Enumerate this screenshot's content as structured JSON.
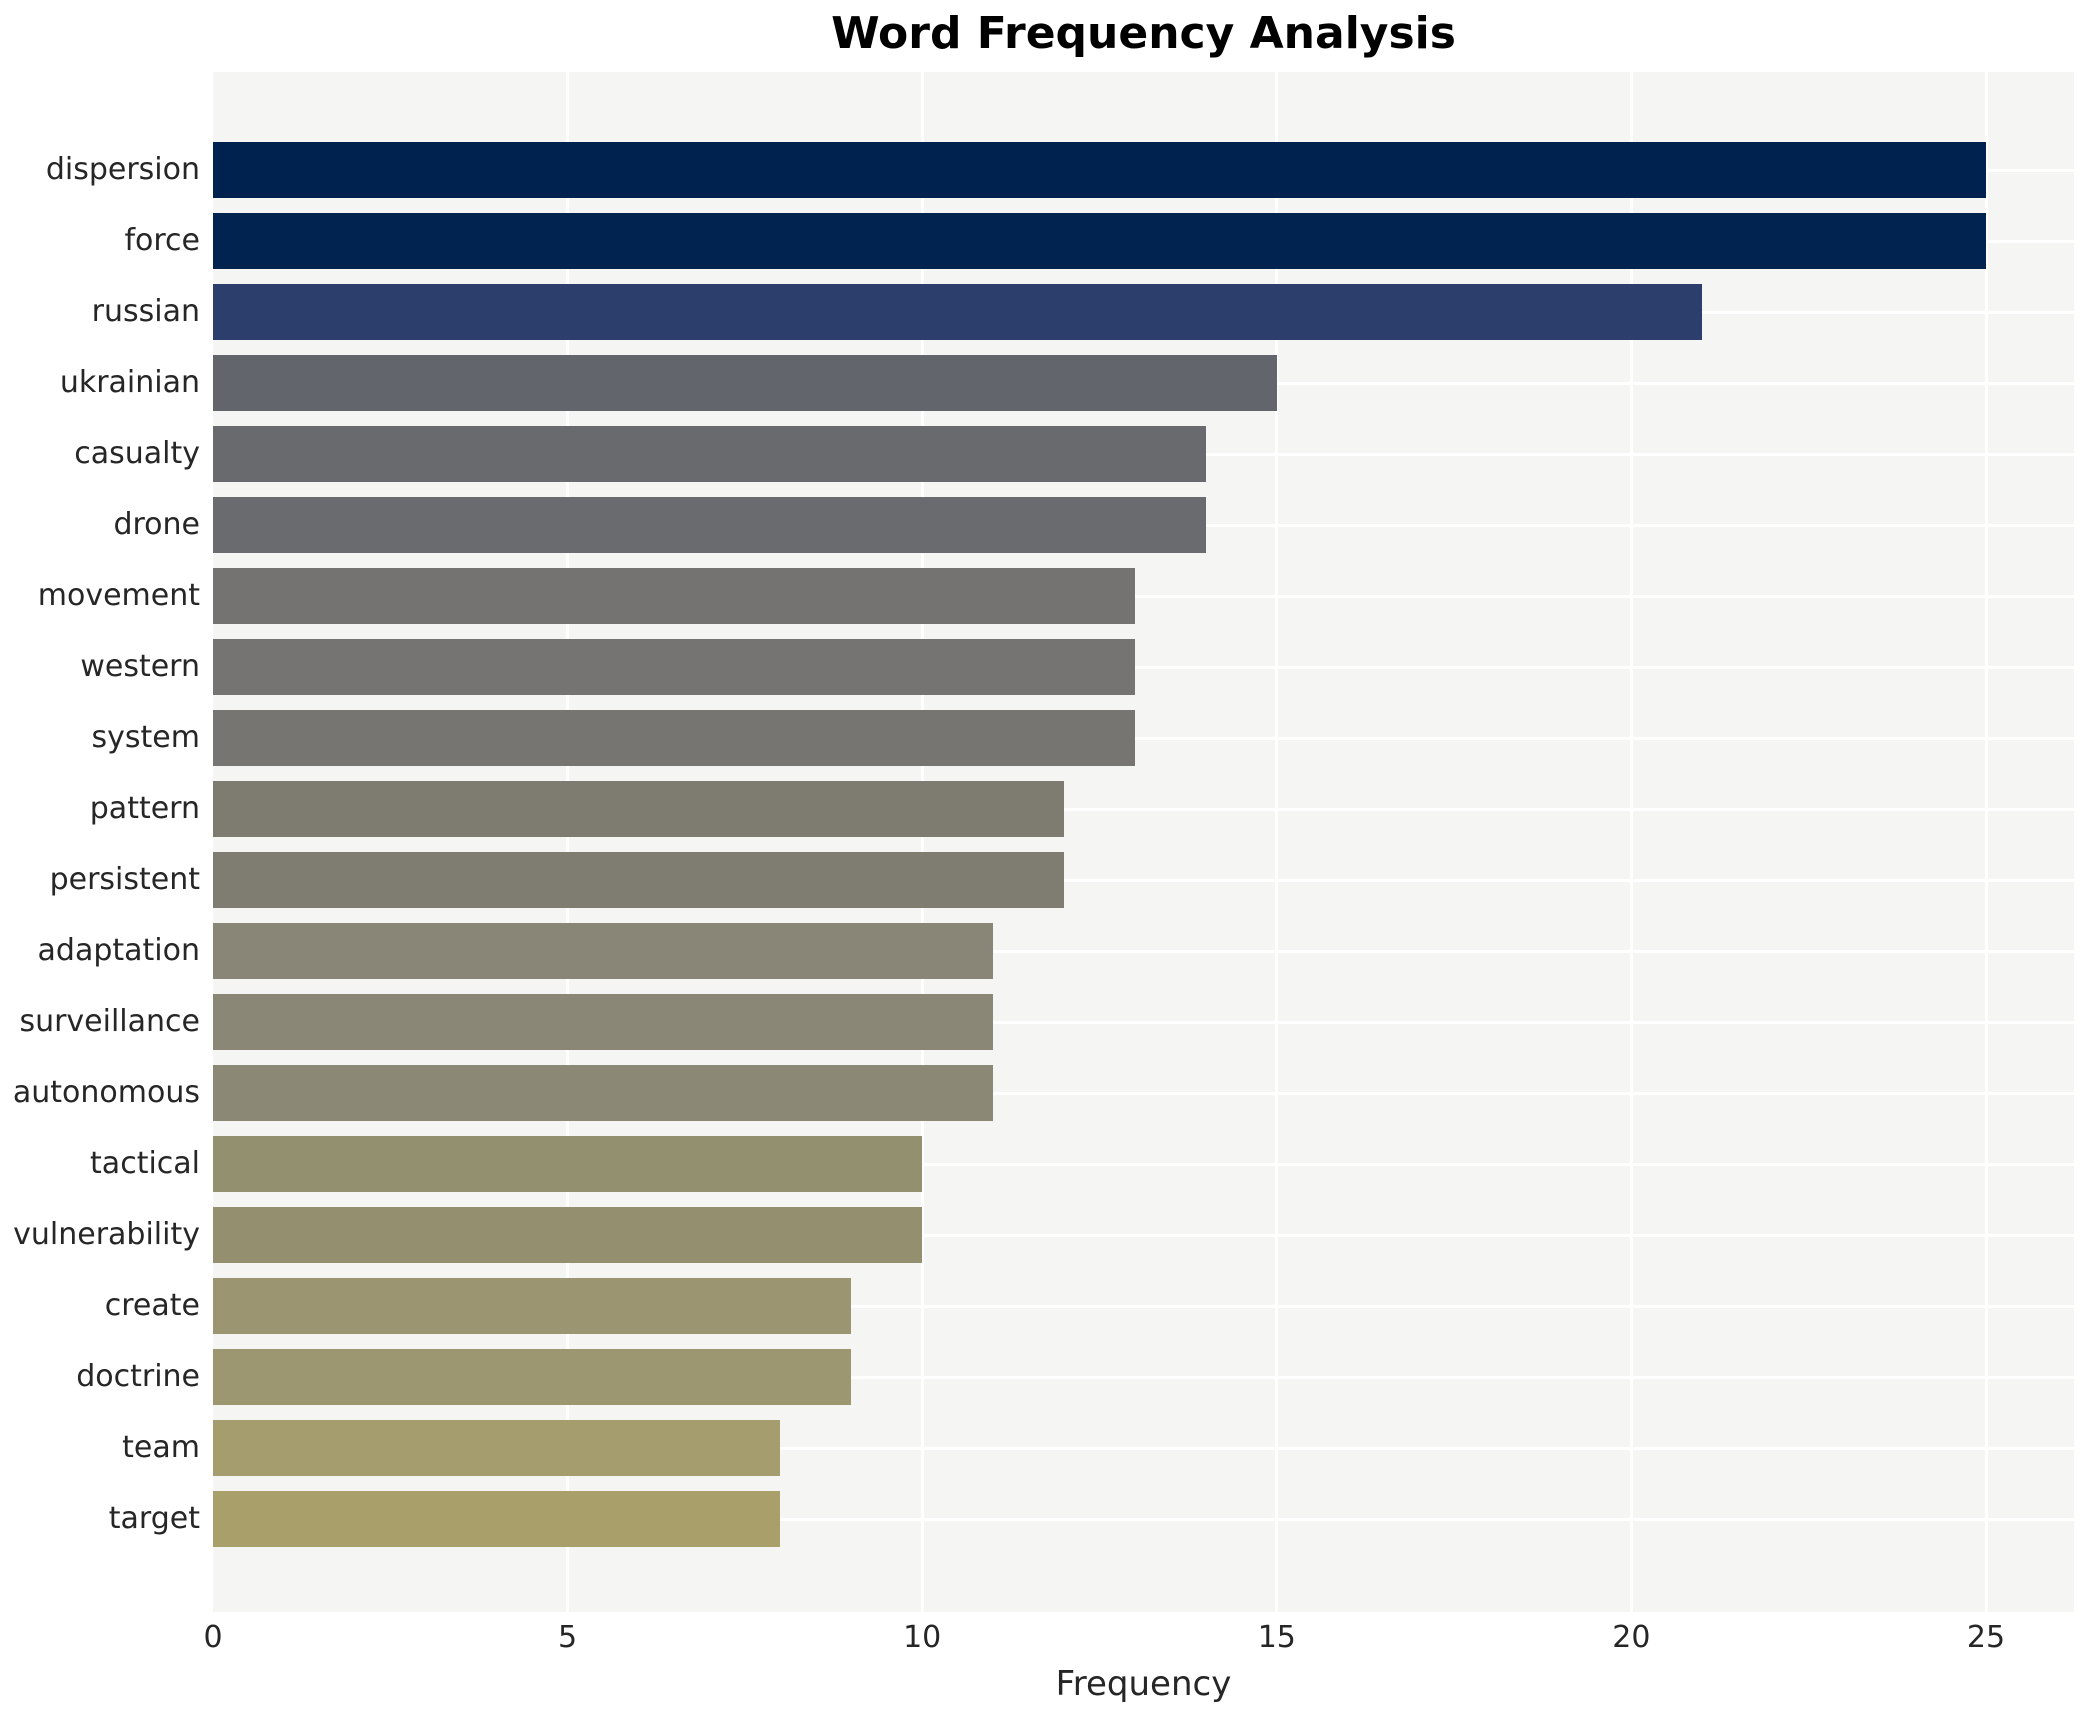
{
  "chart_data": {
    "type": "bar",
    "orientation": "horizontal",
    "title": "Word Frequency Analysis",
    "xlabel": "Frequency",
    "ylabel": "",
    "xlim": [
      0,
      26.3
    ],
    "xticks": [
      0,
      5,
      10,
      15,
      20,
      25
    ],
    "xtick_labels": [
      "0",
      "5",
      "10",
      "15",
      "20",
      "25"
    ],
    "grid": true,
    "legend": false,
    "categories": [
      "dispersion",
      "force",
      "russian",
      "ukrainian",
      "casualty",
      "drone",
      "movement",
      "western",
      "system",
      "pattern",
      "persistent",
      "adaptation",
      "surveillance",
      "autonomous",
      "tactical",
      "vulnerability",
      "create",
      "doctrine",
      "team",
      "target"
    ],
    "values": [
      25,
      25,
      21,
      15,
      14,
      14,
      13,
      13,
      13,
      12,
      12,
      11,
      11,
      11,
      10,
      10,
      9,
      9,
      8,
      8
    ],
    "bar_colors": [
      "#00224e",
      "#01234f",
      "#2c3e6c",
      "#63656c",
      "#696a6e",
      "#6a6b6e",
      "#747371",
      "#757472",
      "#767572",
      "#7e7b71",
      "#7f7c71",
      "#898677",
      "#8a8777",
      "#8b8876",
      "#93906f",
      "#94906f",
      "#9b9572",
      "#9c9671",
      "#a69d6e",
      "#a89f6b"
    ],
    "plot_background": "#f5f5f3",
    "grid_color": "#ffffff",
    "text_color": "#262626",
    "title_color": "#000000"
  }
}
